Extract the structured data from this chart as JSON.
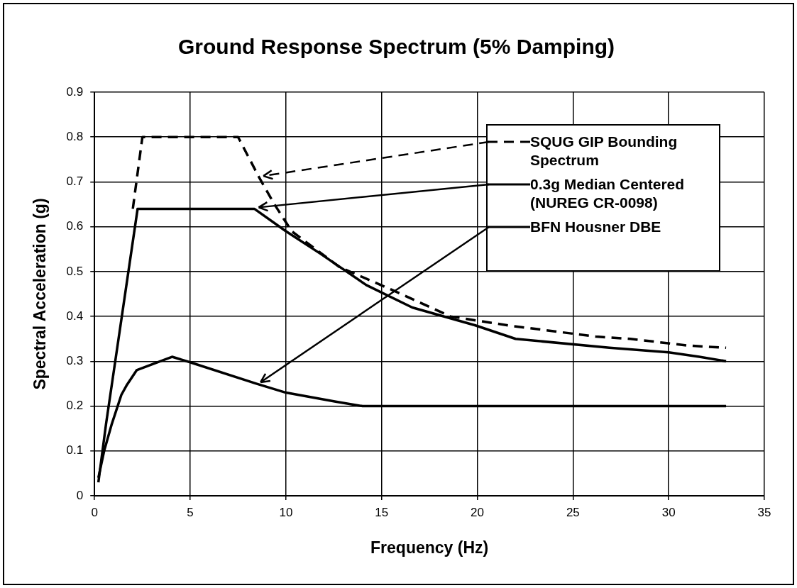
{
  "chart_data": {
    "type": "line",
    "title": "Ground Response Spectrum (5% Damping)",
    "xlabel": "Frequency (Hz)",
    "ylabel": "Spectral Acceleration (g)",
    "xlim": [
      0,
      35
    ],
    "xticks": [
      0,
      5,
      10,
      15,
      20,
      25,
      30,
      35
    ],
    "ylim": [
      0,
      0.9
    ],
    "yticks": [
      0,
      0.1,
      0.2,
      0.3,
      0.4,
      0.5,
      0.6,
      0.7,
      0.8,
      0.9
    ],
    "grid": true,
    "legend": "top right",
    "marker": "none",
    "series": [
      {
        "name": "SQUG GIP Bounding Spectrum",
        "color": "#000000",
        "line_style": "dashed",
        "x": [
          2.0,
          2.5,
          7.5,
          8.6,
          9.4,
          10.3,
          12.8,
          15.5,
          18.6,
          21.6,
          26.2,
          28,
          31,
          33
        ],
        "values": [
          0.64,
          0.8,
          0.8,
          0.71,
          0.65,
          0.59,
          0.51,
          0.46,
          0.4,
          0.38,
          0.355,
          0.35,
          0.335,
          0.33
        ]
      },
      {
        "name": "0.3g Median Centered (NUREG CR-0098)",
        "color": "#000000",
        "line_style": "solid",
        "x": [
          0.2,
          0.6,
          2.25,
          8.35,
          10,
          11.8,
          14.2,
          16.6,
          19.9,
          22,
          26.9,
          30,
          31.6,
          33
        ],
        "values": [
          0.03,
          0.16,
          0.64,
          0.64,
          0.59,
          0.54,
          0.47,
          0.42,
          0.38,
          0.35,
          0.33,
          0.32,
          0.31,
          0.3
        ]
      },
      {
        "name": "BFN Housner DBE",
        "color": "#000000",
        "line_style": "solid",
        "x": [
          0.2,
          0.5,
          0.9,
          1.4,
          1.7,
          2.2,
          4.05,
          5.05,
          8.45,
          10,
          12.6,
          14,
          20,
          33
        ],
        "values": [
          0.04,
          0.1,
          0.16,
          0.225,
          0.248,
          0.28,
          0.31,
          0.297,
          0.25,
          0.23,
          0.21,
          0.2,
          0.2,
          0.2
        ]
      }
    ]
  }
}
